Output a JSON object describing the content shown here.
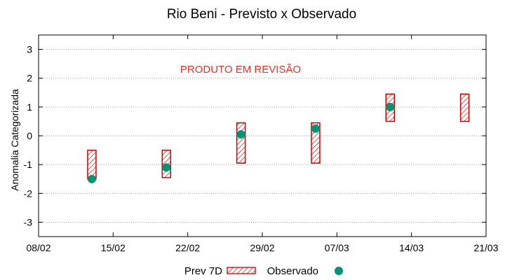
{
  "chart_data": {
    "type": "errorbar-box",
    "title": "Rio Beni - Previsto x Observado",
    "ylabel": "Anomalia Categorizada",
    "xlabel": "",
    "annotation": {
      "text": "PRODUTO EM REVISÃO",
      "color": "#e8302a"
    },
    "x_ticks": [
      "08/02",
      "15/02",
      "22/02",
      "29/02",
      "07/03",
      "14/03",
      "21/03"
    ],
    "y_ticks": [
      3,
      2,
      1,
      0,
      -1,
      -2,
      -3
    ],
    "ylim": [
      -3.5,
      3.5
    ],
    "grid": true,
    "legend_position": "bottom",
    "series": [
      {
        "name": "Prev 7D",
        "kind": "range-box",
        "color": "#cc0000",
        "points": [
          {
            "x": "13/02",
            "low": -1.5,
            "high": -0.5
          },
          {
            "x": "20/02",
            "low": -1.45,
            "high": -0.5
          },
          {
            "x": "27/02",
            "low": -0.95,
            "high": 0.45
          },
          {
            "x": "05/03",
            "low": -0.95,
            "high": 0.45
          },
          {
            "x": "12/03",
            "low": 0.5,
            "high": 1.45
          },
          {
            "x": "19/03",
            "low": 0.5,
            "high": 1.45
          }
        ]
      },
      {
        "name": "Observado",
        "kind": "point",
        "color": "#009473",
        "points": [
          {
            "x": "13/02",
            "y": -1.5
          },
          {
            "x": "20/02",
            "y": -1.1
          },
          {
            "x": "27/02",
            "y": 0.05
          },
          {
            "x": "05/03",
            "y": 0.25
          },
          {
            "x": "12/03",
            "y": 1.0
          }
        ]
      }
    ]
  }
}
